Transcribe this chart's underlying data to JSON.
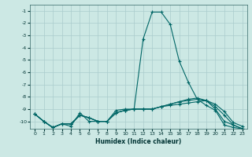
{
  "xlabel": "Humidex (Indice chaleur)",
  "background_color": "#cce8e4",
  "grid_color": "#aacccc",
  "line_color": "#006666",
  "xlim": [
    -0.5,
    23.5
  ],
  "ylim": [
    -10.6,
    -0.5
  ],
  "xticks": [
    0,
    1,
    2,
    3,
    4,
    5,
    6,
    7,
    8,
    9,
    10,
    11,
    12,
    13,
    14,
    15,
    16,
    17,
    18,
    19,
    20,
    21,
    22,
    23
  ],
  "yticks": [
    -1,
    -2,
    -3,
    -4,
    -5,
    -6,
    -7,
    -8,
    -9,
    -10
  ],
  "y_main": [
    -9.4,
    -10.0,
    -10.5,
    -10.2,
    -10.4,
    -9.3,
    -10.0,
    -10.0,
    -10.0,
    -9.1,
    -9.0,
    -9.0,
    -3.3,
    -1.1,
    -1.1,
    -2.1,
    -5.1,
    -6.8,
    -8.2,
    -8.7,
    -9.1,
    -10.3,
    -10.5,
    -10.6
  ],
  "y_line1": [
    -9.4,
    -10.0,
    -10.5,
    -10.2,
    -10.2,
    -9.5,
    -9.7,
    -10.0,
    -10.0,
    -9.3,
    -9.1,
    -9.0,
    -9.0,
    -9.0,
    -8.8,
    -8.7,
    -8.6,
    -8.5,
    -8.4,
    -8.3,
    -8.6,
    -9.2,
    -10.1,
    -10.4
  ],
  "y_line2": [
    -9.4,
    -10.0,
    -10.5,
    -10.2,
    -10.2,
    -9.5,
    -9.7,
    -10.0,
    -10.0,
    -9.3,
    -9.1,
    -9.0,
    -9.0,
    -9.0,
    -8.8,
    -8.6,
    -8.4,
    -8.3,
    -8.2,
    -8.3,
    -8.8,
    -9.5,
    -10.3,
    -10.6
  ],
  "y_line3": [
    -9.4,
    -10.0,
    -10.5,
    -10.2,
    -10.2,
    -9.5,
    -9.7,
    -10.0,
    -10.0,
    -9.3,
    -9.1,
    -9.0,
    -9.0,
    -9.0,
    -8.8,
    -8.6,
    -8.4,
    -8.2,
    -8.1,
    -8.3,
    -9.0,
    -10.0,
    -10.3,
    -10.6
  ]
}
